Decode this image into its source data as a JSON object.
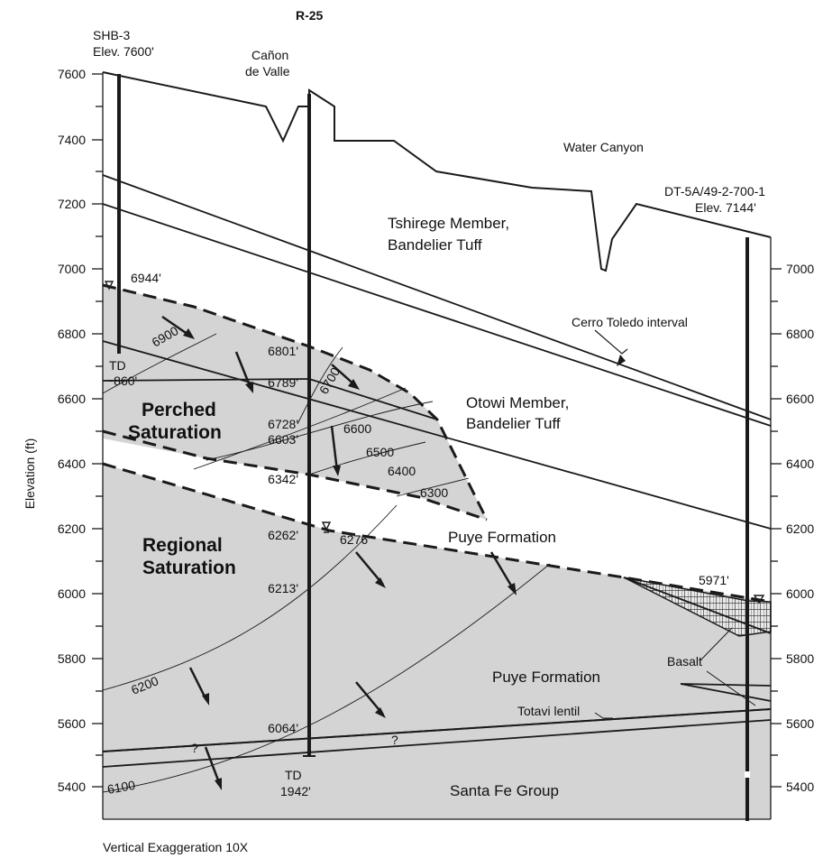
{
  "header": {
    "well_top": "R-25"
  },
  "axis": {
    "title": "Elevation (ft)",
    "ticks": [
      "7600",
      "7400",
      "7200",
      "7000",
      "6800",
      "6600",
      "6400",
      "6200",
      "6000",
      "5800",
      "5600",
      "5400"
    ]
  },
  "wells": {
    "shb3": {
      "name": "SHB-3",
      "elev": "Elev. 7600'",
      "td": "TD",
      "td_depth": "~860'",
      "water": "6944'"
    },
    "r25": {
      "td": "TD",
      "td_depth": "1942'",
      "depths": [
        "6801'",
        "6789'",
        "6728'",
        "6603'",
        "6342'",
        "6262'",
        "6276'",
        "6213'",
        "6064'"
      ]
    },
    "dt5a": {
      "name": "DT-5A/49-2-700-1",
      "elev": "Elev. 7144'",
      "water": "5971'"
    }
  },
  "places": {
    "canon": "Cañon",
    "canon2": "de Valle",
    "water_canyon": "Water Canyon"
  },
  "units": {
    "tshirege1": "Tshirege Member,",
    "tshirege2": "Bandelier Tuff",
    "cerro": "Cerro Toledo interval",
    "otowi1": "Otowi Member,",
    "otowi2": "Bandelier Tuff",
    "puye_upper": "Puye Formation",
    "puye_lower": "Puye Formation",
    "basalt": "Basalt",
    "totavi": "Totavi lentil",
    "santa_fe": "Santa Fe Group"
  },
  "zones": {
    "perched1": "Perched",
    "perched2": "Saturation",
    "regional1": "Regional",
    "regional2": "Saturation"
  },
  "contours": [
    "6900",
    "6700",
    "6600",
    "6500",
    "6400",
    "6300",
    "6200",
    "6100"
  ],
  "unknown": "?",
  "footer": "Vertical Exaggeration 10X",
  "colors": {
    "saturated": "#d4d4d4",
    "line": "#1a1a1a",
    "background": "#ffffff"
  }
}
